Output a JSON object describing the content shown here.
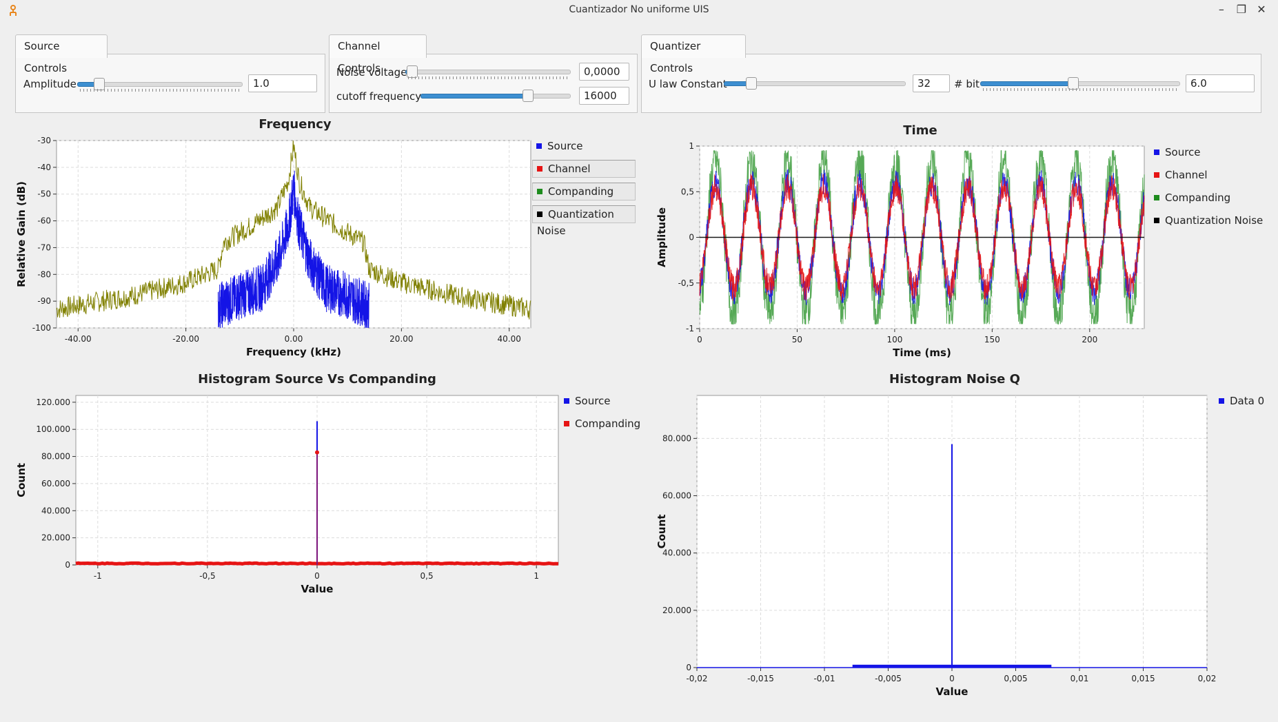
{
  "window": {
    "title": "Cuantizador No uniforme UIS",
    "minimize": "–",
    "restore": "❐",
    "close": "✕"
  },
  "source_controls": {
    "tab": "Source Controls",
    "amplitude_label": "Amplitude",
    "amplitude_value": "1.0",
    "amplitude_level": 0.1
  },
  "channel_controls": {
    "tab": "Channel Controls",
    "noise_label": "Noise voltage",
    "noise_value": "0,0000",
    "noise_level": 0.0,
    "cutoff_label": "cutoff frequency",
    "cutoff_value": "16000",
    "cutoff_level": 0.73
  },
  "quantizer_controls": {
    "tab": "Quantizer Controls",
    "ulaw_label": "U law Constant",
    "ulaw_value": "32",
    "ulaw_level": 0.12,
    "bit_label": "# bit",
    "bit_value": "6.0",
    "bit_level": 0.46
  },
  "colors": {
    "source": "#1414e6",
    "channel": "#e61414",
    "companding": "#1e8c1e",
    "noise": "#000000",
    "freq_trace": "#808000"
  },
  "chart_data": [
    {
      "type": "line",
      "title": "Frequency",
      "xlabel": "Frequency (kHz)",
      "ylabel": "Relative Gain (dB)",
      "xlim": [
        -44,
        44
      ],
      "ylim": [
        -100,
        -30
      ],
      "xticks": [
        "-40.00",
        "-20.00",
        "0.00",
        "20.00",
        "40.00"
      ],
      "xtick_values": [
        -40,
        -20,
        0,
        20,
        40
      ],
      "yticks": [
        "-30",
        "-40",
        "-50",
        "-60",
        "-70",
        "-80",
        "-90",
        "-100"
      ],
      "ytick_values": [
        -30,
        -40,
        -50,
        -60,
        -70,
        -80,
        -90,
        -100
      ],
      "legend": [
        "Source",
        "Channel",
        "Companding",
        "Quantization Noise"
      ],
      "series": [
        {
          "name": "Companding",
          "x": [
            -44,
            -30,
            -20,
            -14,
            -13,
            -8,
            -3,
            -1,
            0,
            1,
            3,
            8,
            13,
            14,
            20,
            30,
            44
          ],
          "values": [
            -93,
            -88,
            -83,
            -78,
            -68,
            -62,
            -55,
            -45,
            -32,
            -45,
            -55,
            -62,
            -68,
            -78,
            -83,
            -88,
            -93
          ]
        },
        {
          "name": "Source",
          "x": [
            -14,
            -10,
            -6,
            -3,
            -1,
            0,
            1,
            3,
            6,
            10,
            14
          ],
          "values": [
            -92,
            -88,
            -85,
            -75,
            -62,
            -48,
            -62,
            -75,
            -85,
            -88,
            -92
          ]
        }
      ]
    },
    {
      "type": "line",
      "title": "Time",
      "xlabel": "Time (ms)",
      "ylabel": "Amplitude",
      "xlim": [
        0,
        228
      ],
      "ylim": [
        -1,
        1
      ],
      "xticks": [
        "0",
        "50",
        "100",
        "150",
        "200"
      ],
      "xtick_values": [
        0,
        50,
        100,
        150,
        200
      ],
      "yticks": [
        "1",
        "0,5",
        "0",
        "-0,5",
        "-1"
      ],
      "ytick_values": [
        1,
        0.5,
        0,
        -0.5,
        -1
      ],
      "legend": [
        "Source",
        "Channel",
        "Companding",
        "Quantization Noise"
      ],
      "series": [
        {
          "name": "Companding",
          "amplitude": 0.85,
          "period_ms": 18.5
        },
        {
          "name": "Source",
          "amplitude": 0.6,
          "period_ms": 18.5
        },
        {
          "name": "Channel",
          "amplitude": 0.55,
          "period_ms": 18.5
        },
        {
          "name": "Quantization Noise",
          "amplitude": 0.0,
          "period_ms": 18.5
        }
      ]
    },
    {
      "type": "line",
      "title": "Histogram Source Vs Companding",
      "xlabel": "Value",
      "ylabel": "Count",
      "xlim": [
        -1.1,
        1.1
      ],
      "ylim": [
        0,
        125000
      ],
      "xticks": [
        "-1",
        "-0,5",
        "0",
        "0,5",
        "1"
      ],
      "xtick_values": [
        -1,
        -0.5,
        0,
        0.5,
        1
      ],
      "yticks": [
        "120.000",
        "100.000",
        "80.000",
        "60.000",
        "40.000",
        "20.000",
        "0"
      ],
      "ytick_values": [
        120000,
        100000,
        80000,
        60000,
        40000,
        20000,
        0
      ],
      "legend": [
        "Source",
        "Companding"
      ],
      "series": [
        {
          "name": "Source",
          "peak_x": 0,
          "peak_value": 106000
        },
        {
          "name": "Companding",
          "peak_x": 0,
          "peak_value": 83000
        }
      ]
    },
    {
      "type": "line",
      "title": "Histogram Noise Q",
      "xlabel": "Value",
      "ylabel": "Count",
      "xlim": [
        -0.02,
        0.02
      ],
      "ylim": [
        0,
        95000
      ],
      "xticks": [
        "-0,02",
        "-0,015",
        "-0,01",
        "-0,005",
        "0",
        "0,005",
        "0,01",
        "0,015",
        "0,02"
      ],
      "xtick_values": [
        -0.02,
        -0.015,
        -0.01,
        -0.005,
        0,
        0.005,
        0.01,
        0.015,
        0.02
      ],
      "yticks": [
        "80.000",
        "60.000",
        "40.000",
        "20.000",
        "0"
      ],
      "ytick_values": [
        80000,
        60000,
        40000,
        20000,
        0
      ],
      "legend": [
        "Data 0"
      ],
      "series": [
        {
          "name": "Data 0",
          "peak_x": 0,
          "peak_value": 78000,
          "band": [
            -0.0078,
            0.0078
          ],
          "band_value": 1000
        }
      ]
    }
  ]
}
